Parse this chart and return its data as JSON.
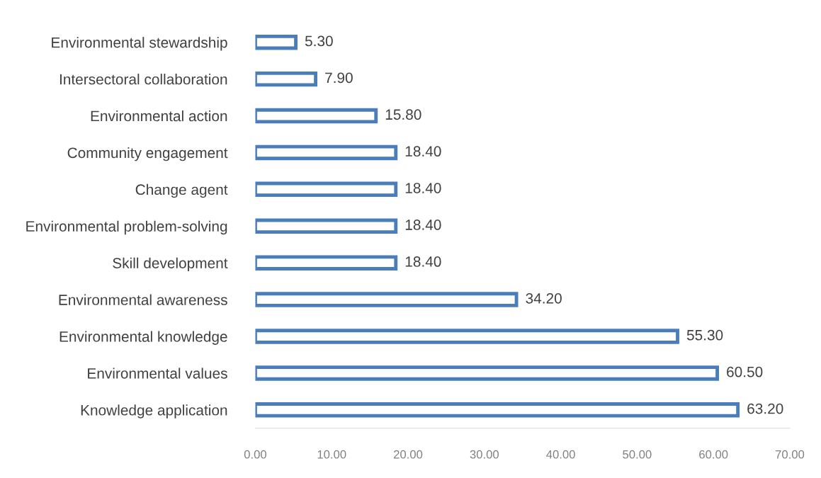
{
  "chart_data": {
    "type": "bar",
    "orientation": "horizontal",
    "categories": [
      "Environmental stewardship",
      "Intersectoral collaboration",
      "Environmental action",
      "Community engagement",
      "Change agent",
      "Environmental problem-solving",
      "Skill development",
      "Environmental awareness",
      "Environmental knowledge",
      "Environmental values",
      "Knowledge application"
    ],
    "values": [
      5.3,
      7.9,
      15.8,
      18.4,
      18.4,
      18.4,
      18.4,
      34.2,
      55.3,
      60.5,
      63.2
    ],
    "value_labels": [
      "5.30",
      "7.90",
      "15.80",
      "18.40",
      "18.40",
      "18.40",
      "18.40",
      "34.20",
      "55.30",
      "60.50",
      "63.20"
    ],
    "color": "#4a7ebb",
    "xlim": [
      0,
      70
    ],
    "xticks": [
      {
        "value": 0,
        "label": "0.00"
      },
      {
        "value": 10,
        "label": "10.00"
      },
      {
        "value": 20,
        "label": "20.00"
      },
      {
        "value": 30,
        "label": "30.00"
      },
      {
        "value": 40,
        "label": "40.00"
      },
      {
        "value": 50,
        "label": "50.00"
      },
      {
        "value": 60,
        "label": "60.00"
      },
      {
        "value": 70,
        "label": "70.00"
      }
    ],
    "grid": false,
    "legend": false
  }
}
